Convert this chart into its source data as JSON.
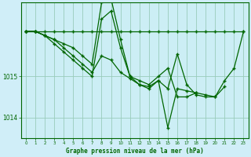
{
  "background_color": "#d0eef8",
  "plot_bg_color": "#cceef5",
  "grid_color": "#99ccbb",
  "line_color": "#006600",
  "xlabel": "Graphe pression niveau de la mer (hPa)",
  "hours": [
    0,
    1,
    2,
    3,
    4,
    5,
    6,
    7,
    8,
    9,
    10,
    11,
    12,
    13,
    14,
    15,
    16,
    17,
    18,
    19,
    20,
    21,
    22,
    23
  ],
  "series": [
    [
      1016.1,
      1016.1,
      1016.1,
      1016.1,
      1016.1,
      1016.1,
      1016.1,
      1016.1,
      1016.1,
      1016.1,
      1016.1,
      1016.1,
      1016.1,
      1016.1,
      1016.1,
      1016.1,
      1016.1,
      1016.1,
      1016.1,
      1016.1,
      1016.1,
      1016.1,
      1016.1,
      1016.1
    ],
    [
      1016.1,
      1016.1,
      1016.0,
      1015.9,
      1015.8,
      1015.7,
      1015.5,
      1015.3,
      1016.8,
      1016.9,
      1015.9,
      1015.0,
      1014.9,
      1014.8,
      1015.0,
      1015.2,
      1014.5,
      1014.5,
      1014.6,
      null,
      null,
      null,
      null,
      null
    ],
    [
      1016.1,
      1016.1,
      1016.0,
      1015.8,
      1015.6,
      1015.4,
      1015.2,
      1015.0,
      1016.4,
      1016.6,
      1015.7,
      1015.0,
      1014.8,
      1014.7,
      1014.9,
      1013.75,
      1014.7,
      1014.65,
      1014.6,
      1014.55,
      1014.5,
      1014.75,
      null,
      null
    ],
    [
      1016.1,
      1016.1,
      1016.0,
      1015.9,
      1015.7,
      1015.5,
      1015.3,
      1015.1,
      1015.5,
      1015.4,
      1015.1,
      1014.95,
      1014.8,
      1014.75,
      1014.9,
      1014.7,
      1015.55,
      1014.8,
      1014.55,
      1014.5,
      1014.5,
      1014.9,
      1015.2,
      1016.1
    ]
  ],
  "yticks": [
    1014.0,
    1015.0
  ],
  "ylim": [
    1013.5,
    1016.8
  ],
  "xlim": [
    -0.5,
    23.5
  ],
  "figsize": [
    3.2,
    2.0
  ],
  "dpi": 100
}
